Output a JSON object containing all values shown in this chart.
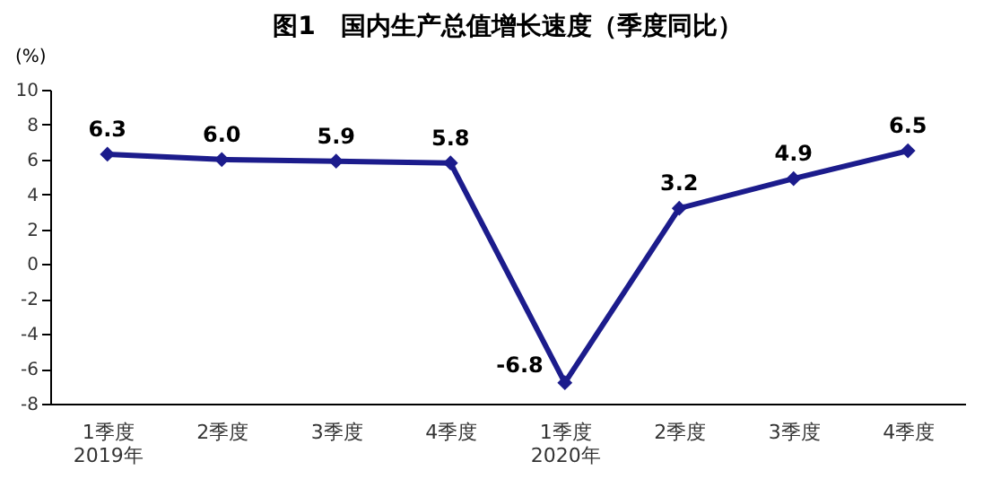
{
  "chart_data": {
    "type": "line",
    "title": "图1　国内生产总值增长速度（季度同比）",
    "ylabel": "(%)",
    "categories": [
      "1季度\n2019年",
      "2季度",
      "3季度",
      "4季度",
      "1季度\n2020年",
      "2季度",
      "3季度",
      "4季度"
    ],
    "series": [
      {
        "color": "#1c1c8c",
        "values": [
          6.3,
          6.0,
          5.9,
          5.8,
          -6.8,
          3.2,
          4.9,
          6.5
        ],
        "value_labels": [
          "6.3",
          "6.0",
          "5.9",
          "5.8",
          "-6.8",
          "3.2",
          "4.9",
          "6.5"
        ]
      }
    ],
    "ylim": [
      -8,
      10
    ],
    "yticks": [
      -8,
      -6,
      -4,
      -2,
      0,
      2,
      4,
      6,
      8,
      10
    ],
    "marker": "diamond",
    "line_style": "solid",
    "grid": false
  }
}
